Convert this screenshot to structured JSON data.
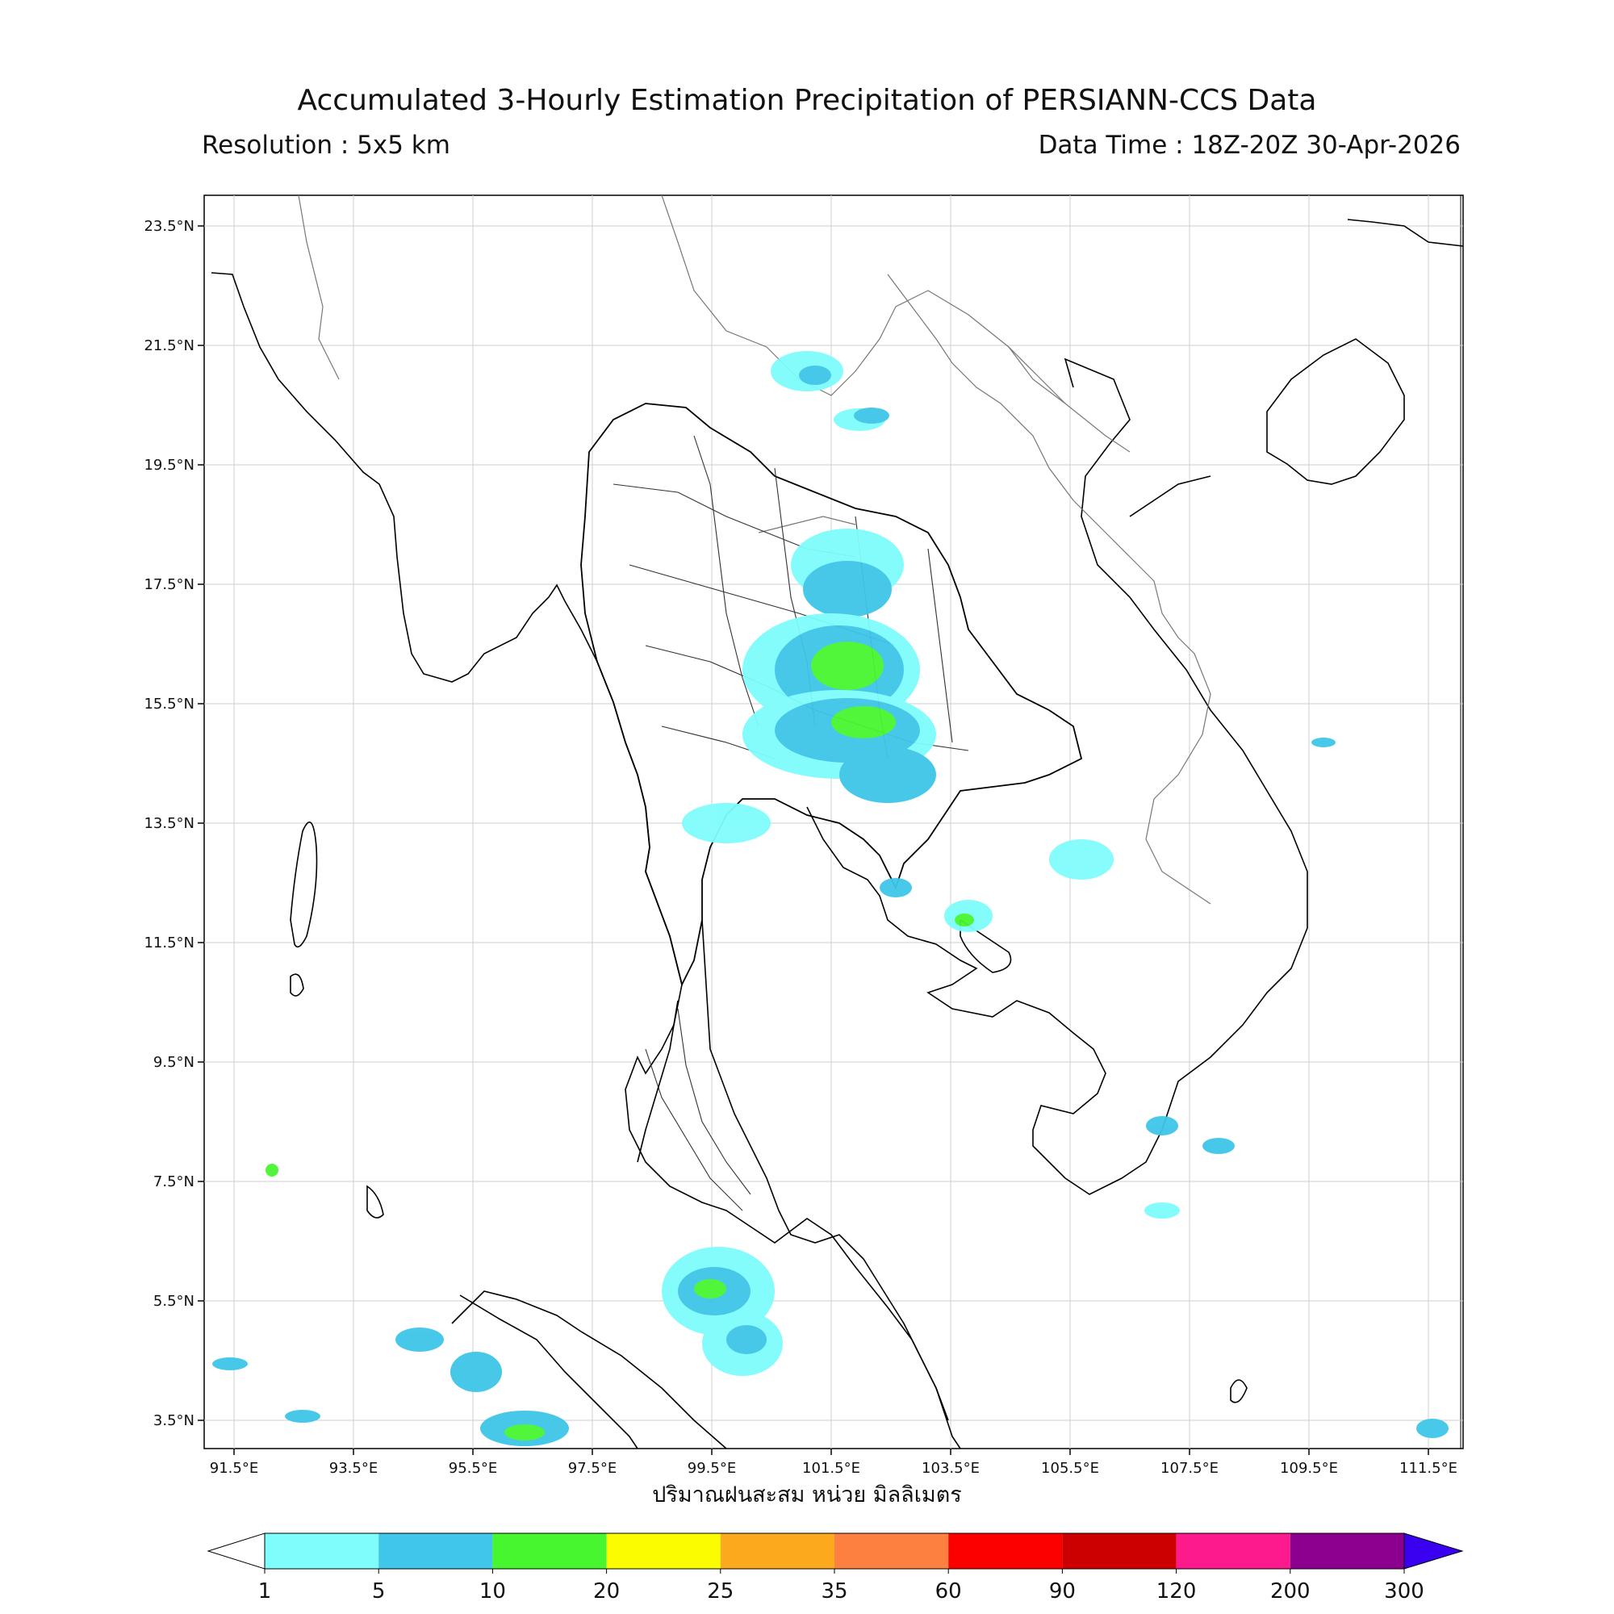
{
  "title": "Accumulated 3-Hourly Estimation Precipitation of PERSIANN-CCS Data",
  "resolution": "Resolution : 5x5 km",
  "data_time": "Data Time : 18Z-20Z 30-Apr-2026",
  "x_axis_label": "ปริมาณฝนสะสม หน่วย มิลลิเมตร",
  "lat_ticks": [
    "23.5°N",
    "21.5°N",
    "19.5°N",
    "17.5°N",
    "15.5°N",
    "13.5°N",
    "11.5°N",
    "9.5°N",
    "7.5°N",
    "5.5°N",
    "3.5°N"
  ],
  "lon_ticks": [
    "91.5°E",
    "93.5°E",
    "95.5°E",
    "97.5°E",
    "99.5°E",
    "101.5°E",
    "103.5°E",
    "105.5°E",
    "107.5°E",
    "109.5°E",
    "111.5°E"
  ],
  "colorbar": {
    "ticks": [
      "1",
      "5",
      "10",
      "20",
      "25",
      "35",
      "60",
      "90",
      "120",
      "200",
      "300"
    ],
    "colors": [
      "#7ffcfc",
      "#3fc6e8",
      "#48f630",
      "#fcfc00",
      "#fca91e",
      "#fc8040",
      "#fc0000",
      "#cc0000",
      "#fc1a8c",
      "#8c0090",
      "#3a00f0"
    ]
  }
}
